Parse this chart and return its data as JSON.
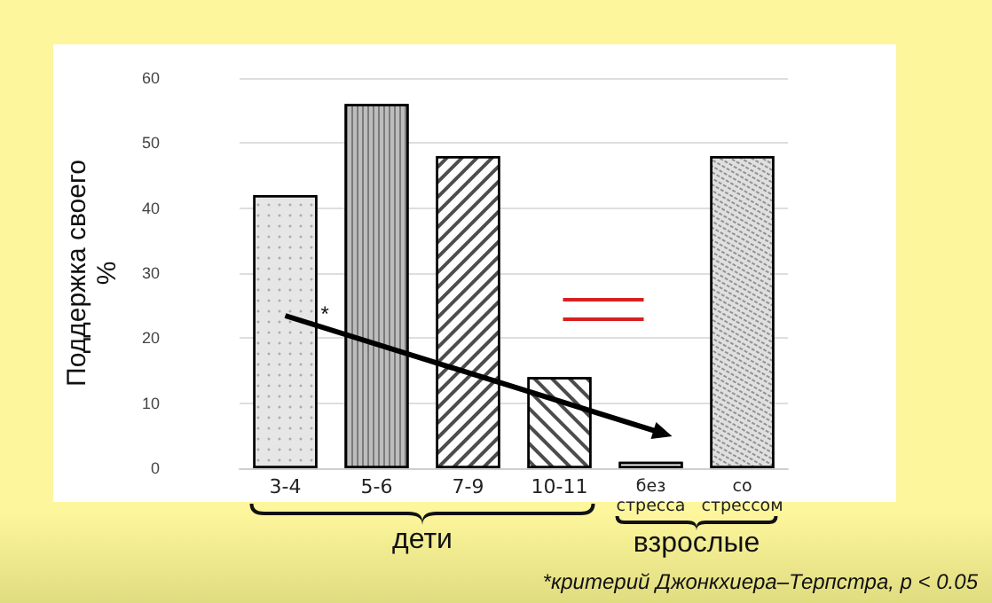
{
  "chart_data": {
    "type": "bar",
    "ylabel": "Поддержка своего\n%",
    "categories": [
      "3-4",
      "5-6",
      "7-9",
      "10-11",
      "без\nстресса",
      "со\nстрессом"
    ],
    "series": [
      {
        "values": [
          42,
          56,
          48,
          14,
          1,
          48
        ],
        "colors": [
          "#e6e6e6",
          "#bdbdbd",
          "#ffffff",
          "#ffffff",
          "#ffffff",
          "#e0e0e0"
        ]
      }
    ],
    "ylim": [
      0,
      60
    ],
    "yticks": [
      0,
      10,
      20,
      30,
      40,
      50,
      60
    ],
    "grid": "y",
    "annotations": [
      "*",
      "дети",
      "взрослые",
      "*критерий Джонкхиера–Терпстра, p < 0.05"
    ]
  }
}
